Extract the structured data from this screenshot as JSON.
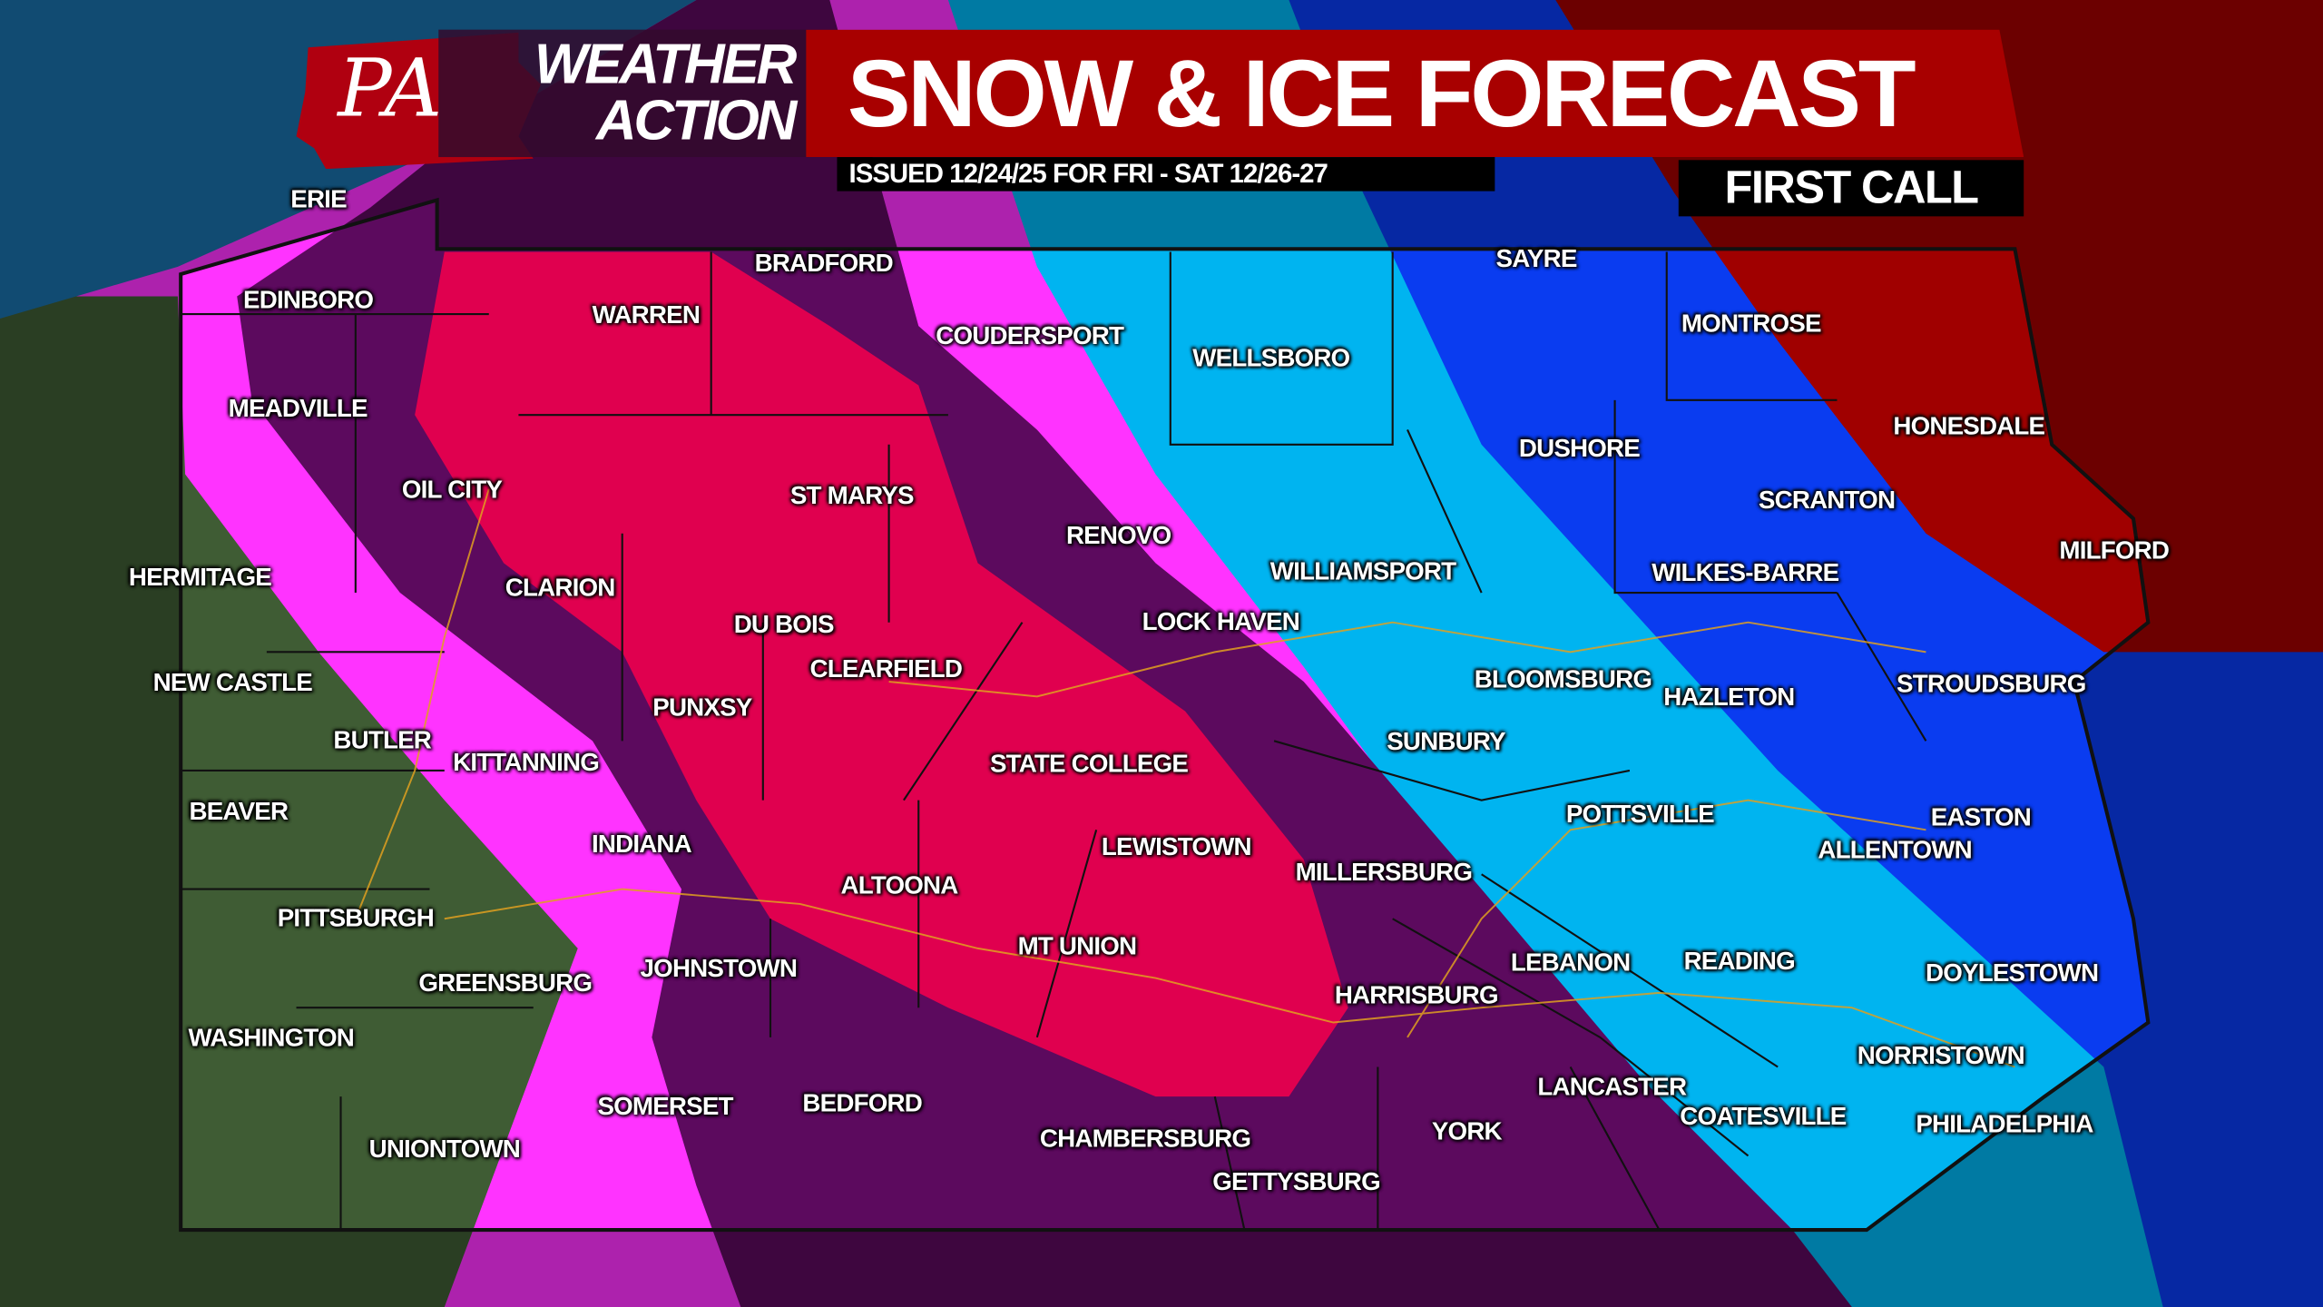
{
  "header": {
    "logo_letters": "PA",
    "brand_line1": "WEATHER",
    "brand_line2": "ACTION",
    "title": "SNOW & ICE FORECAST",
    "issued": "ISSUED 12/24/25 FOR FRI - SAT 12/26-27",
    "badge": "FIRST CALL"
  },
  "colors": {
    "brand_red": "#a80000",
    "zone_pink": "#ff33ff",
    "zone_dark_purple": "#5c0a5e",
    "zone_crimson": "#e0004f",
    "zone_light_blue": "#00b4f0",
    "zone_blue": "#0a3cf0",
    "zone_dark_red": "#a00000",
    "lake": "#1a6fa8",
    "terrain": "#3f5c34"
  },
  "cities": [
    "ERIE",
    "EDINBORO",
    "MEADVILLE",
    "BRADFORD",
    "WARREN",
    "COUDERSPORT",
    "WELLSBORO",
    "SAYRE",
    "MONTROSE",
    "HONESDALE",
    "DUSHORE",
    "SCRANTON",
    "OIL CITY",
    "ST MARYS",
    "RENOVO",
    "MILFORD",
    "HERMITAGE",
    "CLARION",
    "WILLIAMSPORT",
    "WILKES-BARRE",
    "DU BOIS",
    "LOCK HAVEN",
    "CLEARFIELD",
    "NEW CASTLE",
    "BLOOMSBURG",
    "HAZLETON",
    "STROUDSBURG",
    "PUNXSY",
    "BUTLER",
    "SUNBURY",
    "KITTANNING",
    "STATE COLLEGE",
    "BEAVER",
    "POTTSVILLE",
    "EASTON",
    "INDIANA",
    "LEWISTOWN",
    "ALLENTOWN",
    "MILLERSBURG",
    "ALTOONA",
    "PITTSBURGH",
    "MT UNION",
    "LEBANON",
    "READING",
    "DOYLESTOWN",
    "JOHNSTOWN",
    "GREENSBURG",
    "HARRISBURG",
    "WASHINGTON",
    "NORRISTOWN",
    "LANCASTER",
    "SOMERSET",
    "BEDFORD",
    "COATESVILLE",
    "PHILADELPHIA",
    "YORK",
    "CHAMBERSBURG",
    "UNIONTOWN",
    "GETTYSBURG"
  ]
}
